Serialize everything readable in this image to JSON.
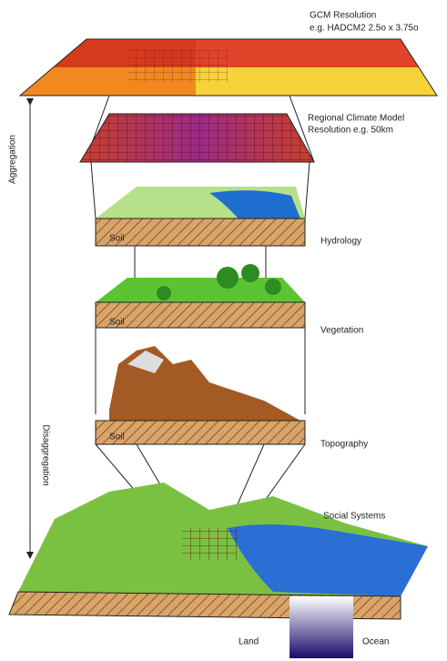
{
  "side_axis": {
    "up": "Aggregation",
    "down": "Disaggregation"
  },
  "layers": [
    {
      "label_lines": [
        "GCM Resolution",
        "e.g. HADCM2 2.5o x 3.75o"
      ]
    },
    {
      "label_lines": [
        "Regional Climate Model",
        "Resolution e.g. 50km"
      ]
    },
    {
      "label_lines": [
        "Hydrology"
      ]
    },
    {
      "label_lines": [
        "Vegetation"
      ]
    },
    {
      "label_lines": [
        "Topography"
      ]
    },
    {
      "label_lines": [
        "Social Systems"
      ]
    }
  ],
  "soil_labels": [
    "Soil",
    "Soil",
    "Soil"
  ],
  "legend": {
    "land": "Land",
    "ocean": "Ocean"
  }
}
